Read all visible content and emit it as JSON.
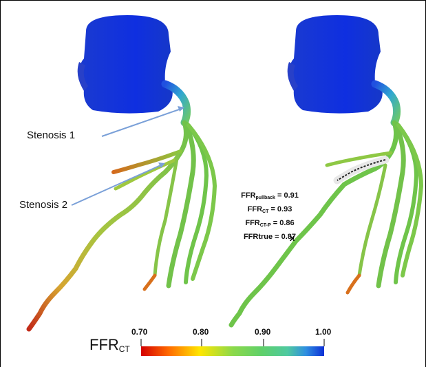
{
  "labels": {
    "stenosis_1": "Stenosis 1",
    "stenosis_2": "Stenosis 2"
  },
  "measurements": {
    "ffr_pullback_label": "FFR",
    "ffr_pullback_sub": "pullback",
    "ffr_pullback_value": "= 0.91",
    "ffr_ct_label": "FFR",
    "ffr_ct_sub": "CT",
    "ffr_ct_value": "= 0.93",
    "ffr_ctp_label": "FFR",
    "ffr_ctp_sub": "CT-P",
    "ffr_ctp_value": "= 0.86",
    "ffr_true": "FFRtrue = 0.87",
    "point_marker": "X"
  },
  "colorbar": {
    "title": "FFR",
    "title_sub": "CT",
    "ticks": [
      "0.70",
      "0.80",
      "0.90",
      "1.00"
    ],
    "colors": [
      "#d40000",
      "#ff7a00",
      "#ffe600",
      "#8cd94a",
      "#5fd06a",
      "#4fc9a0",
      "#2f8fe0",
      "#0c2fd6"
    ]
  },
  "colors": {
    "aorta": "#1030d8",
    "vessel_green": "#6fc44a",
    "vessel_yellow": "#c9c23a",
    "vessel_orange": "#e0701e",
    "vessel_red": "#c0241a",
    "arrow": "#7aa0d8"
  }
}
